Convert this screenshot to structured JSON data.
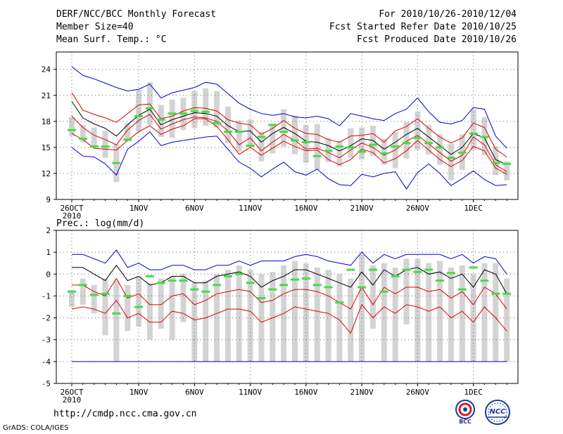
{
  "header": {
    "title": "DERF/NCC/BCC Monthly Forecast",
    "member_size": "Member Size=40",
    "variable": "Mean Surf. Temp.: °C",
    "period": "For 2010/10/26-2010/12/04",
    "fcst_started": "Fcst Started Refer Date 2010/10/25",
    "fcst_produced": "Fcst Produced Date 2010/10/26"
  },
  "footer": {
    "url": "http://cmdp.ncc.cma.gov.cn",
    "grads": "GrADS: COLA/IGES",
    "logo_bcc": "BCC",
    "logo_ncc": "NCC"
  },
  "colors": {
    "envelope": "#0000cc",
    "spread": "#dd0000",
    "mean": "#000000",
    "obs": "#44dd44",
    "box": "#d3d3d3"
  },
  "chart_data": [
    {
      "type": "line",
      "name": "temperature",
      "title": "",
      "ylabel": "",
      "ylim": [
        9,
        26
      ],
      "yticks": [
        9,
        12,
        15,
        18,
        21,
        24
      ],
      "xlim": [
        1,
        40
      ],
      "xticks": [
        {
          "x": 1,
          "label": "26OCT",
          "sub": "2010"
        },
        {
          "x": 7,
          "label": "1NOV"
        },
        {
          "x": 12,
          "label": "6NOV"
        },
        {
          "x": 17,
          "label": "11NOV"
        },
        {
          "x": 22,
          "label": "16NOV"
        },
        {
          "x": 27,
          "label": "21NOV"
        },
        {
          "x": 32,
          "label": "26NOV"
        },
        {
          "x": 37,
          "label": "1DEC"
        }
      ],
      "series": [
        {
          "name": "max",
          "color": "#0000cc",
          "values": [
            24.3,
            23.3,
            22.9,
            22.4,
            21.9,
            21.5,
            21.7,
            22.3,
            20.7,
            21.3,
            21.6,
            21.9,
            22.5,
            22.3,
            21.2,
            20.1,
            19.4,
            18.9,
            18.7,
            18.9,
            18.5,
            18.4,
            18.6,
            18.3,
            17.5,
            18.9,
            18.6,
            18.3,
            18.1,
            18.9,
            19.4,
            20.7,
            19.1,
            17.9,
            17.7,
            18.1,
            19.6,
            19.4,
            16.3,
            14.9
          ]
        },
        {
          "name": "upper",
          "color": "#dd0000",
          "values": [
            21.3,
            19.3,
            18.8,
            18.4,
            17.9,
            18.9,
            19.9,
            20.0,
            18.3,
            18.6,
            19.2,
            19.6,
            19.5,
            19.2,
            18.2,
            17.8,
            17.6,
            16.5,
            17.2,
            18.1,
            17.2,
            16.6,
            16.5,
            15.9,
            15.6,
            16.3,
            16.4,
            16.6,
            15.6,
            16.9,
            17.4,
            18.3,
            17.2,
            16.2,
            15.5,
            16.1,
            17.8,
            17.3,
            14.8,
            13.9
          ]
        },
        {
          "name": "mean",
          "color": "#000000",
          "values": [
            20.3,
            18.4,
            17.7,
            17.2,
            16.3,
            17.6,
            18.7,
            19.4,
            17.6,
            18.2,
            18.6,
            19.0,
            18.9,
            18.6,
            17.5,
            16.8,
            16.9,
            15.6,
            16.6,
            17.3,
            16.6,
            15.7,
            15.6,
            15.2,
            14.6,
            15.2,
            16.0,
            15.8,
            14.8,
            15.6,
            16.5,
            17.2,
            16.2,
            15.2,
            14.2,
            15.0,
            16.6,
            16.1,
            13.6,
            13.0
          ]
        },
        {
          "name": "lower",
          "color": "#dd0000",
          "values": [
            18.6,
            17.3,
            16.4,
            15.9,
            15.3,
            17.0,
            18.1,
            18.8,
            17.1,
            17.7,
            18.2,
            18.5,
            18.4,
            18.0,
            16.9,
            15.3,
            16.1,
            14.6,
            15.6,
            16.5,
            15.8,
            14.8,
            14.9,
            14.4,
            13.8,
            14.7,
            15.5,
            15.0,
            14.1,
            14.7,
            15.7,
            16.4,
            15.4,
            14.4,
            13.4,
            14.1,
            16.2,
            15.3,
            13.0,
            12.2
          ]
        },
        {
          "name": "lower2",
          "color": "#dd0000",
          "values": [
            16.6,
            15.9,
            14.9,
            14.8,
            14.7,
            15.8,
            16.8,
            17.5,
            16.5,
            17.1,
            17.5,
            18.3,
            18.3,
            17.4,
            15.9,
            14.2,
            15.0,
            14.1,
            14.9,
            15.7,
            15.1,
            14.6,
            14.7,
            13.6,
            13.0,
            13.6,
            14.8,
            14.4,
            13.2,
            13.7,
            14.6,
            15.8,
            14.7,
            13.6,
            12.8,
            13.5,
            15.1,
            14.6,
            12.6,
            11.9
          ]
        },
        {
          "name": "min",
          "color": "#0000cc",
          "values": [
            15.0,
            14.0,
            13.9,
            13.1,
            11.8,
            14.8,
            15.7,
            16.8,
            15.2,
            15.6,
            15.8,
            16.0,
            16.2,
            16.3,
            14.8,
            13.3,
            12.6,
            11.6,
            12.5,
            13.3,
            12.2,
            11.8,
            12.5,
            11.4,
            10.7,
            10.6,
            11.9,
            11.6,
            12.0,
            12.2,
            10.2,
            12.1,
            13.1,
            12.0,
            10.6,
            11.4,
            12.3,
            11.3,
            10.6,
            10.7
          ]
        }
      ],
      "boxes": {
        "low": [
          16.3,
          15.6,
          15.1,
          13.8,
          11.0,
          15.7,
          16.8,
          17.6,
          16.2,
          16.1,
          17.0,
          17.2,
          17.5,
          17.3,
          15.5,
          14.5,
          15.0,
          13.4,
          14.3,
          15.1,
          14.2,
          13.2,
          12.4,
          13.3,
          12.8,
          13.8,
          13.6,
          14.0,
          13.0,
          12.6,
          13.7,
          14.7,
          14.2,
          13.0,
          11.2,
          12.4,
          14.7,
          14.1,
          11.8,
          11.2
        ],
        "high": [
          18.5,
          17.6,
          17.3,
          16.9,
          15.4,
          17.8,
          21.6,
          22.5,
          19.9,
          20.5,
          20.7,
          21.5,
          21.8,
          21.5,
          19.7,
          18.1,
          18.2,
          16.8,
          17.7,
          19.4,
          18.7,
          17.6,
          17.7,
          16.1,
          15.7,
          17.2,
          17.3,
          17.5,
          16.0,
          16.8,
          17.9,
          19.1,
          17.6,
          16.5,
          15.4,
          16.5,
          19.4,
          18.5,
          15.1,
          13.4
        ]
      },
      "obs": [
        17.0,
        16.0,
        15.1,
        15.1,
        13.2,
        15.9,
        18.6,
        19.5,
        18.2,
        18.9,
        18.9,
        19.2,
        19.1,
        17.8,
        16.8,
        16.8,
        15.2,
        16.2,
        17.6,
        16.8,
        15.8,
        15.6,
        14.0,
        14.6,
        15.1,
        15.0,
        14.5,
        15.3,
        14.3,
        15.1,
        15.5,
        16.1,
        15.5,
        15.0,
        13.8,
        14.4,
        16.6,
        16.2,
        13.2,
        13.1
      ]
    },
    {
      "type": "line",
      "name": "precipitation",
      "title": "Prec.: log(mm/d)",
      "ylabel": "",
      "ylim": [
        -5,
        2
      ],
      "yticks": [
        -5,
        -4,
        -3,
        -2,
        -1,
        0,
        1,
        2
      ],
      "xlim": [
        1,
        40
      ],
      "xticks": [
        {
          "x": 1,
          "label": "26OCT",
          "sub": "2010"
        },
        {
          "x": 7,
          "label": "1NOV"
        },
        {
          "x": 12,
          "label": "6NOV"
        },
        {
          "x": 17,
          "label": "11NOV"
        },
        {
          "x": 22,
          "label": "16NOV"
        },
        {
          "x": 27,
          "label": "21NOV"
        },
        {
          "x": 32,
          "label": "26NOV"
        },
        {
          "x": 37,
          "label": "1DEC"
        }
      ],
      "series": [
        {
          "name": "max",
          "color": "#0000cc",
          "values": [
            0.9,
            0.9,
            0.7,
            0.5,
            1.1,
            0.3,
            0.5,
            0.2,
            0.2,
            0.4,
            0.4,
            0.2,
            0.2,
            0.4,
            0.4,
            0.6,
            0.4,
            0.6,
            0.6,
            0.6,
            0.8,
            0.9,
            0.8,
            0.6,
            0.5,
            0.4,
            1.0,
            0.5,
            0.9,
            0.7,
            0.9,
            0.9,
            0.9,
            0.9,
            0.7,
            0.9,
            0.5,
            0.8,
            0.7,
            0.0
          ]
        },
        {
          "name": "upper",
          "color": "#000000",
          "values": [
            0.3,
            0.3,
            0.0,
            -0.3,
            0.4,
            -0.3,
            -0.1,
            -0.5,
            -0.4,
            -0.1,
            -0.1,
            -0.4,
            -0.4,
            -0.1,
            0.0,
            0.1,
            -0.1,
            -0.6,
            -0.3,
            -0.1,
            0.2,
            0.2,
            0.0,
            -0.2,
            -0.4,
            -0.6,
            0.1,
            -0.5,
            0.2,
            -0.1,
            0.2,
            0.3,
            0.0,
            0.1,
            -0.2,
            0.0,
            -0.6,
            0.2,
            0.0,
            -0.9
          ]
        },
        {
          "name": "mid",
          "color": "#dd0000",
          "values": [
            -0.5,
            -0.5,
            -0.8,
            -1.0,
            -0.2,
            -1.1,
            -0.9,
            -1.4,
            -1.4,
            -1.0,
            -0.9,
            -1.4,
            -1.2,
            -0.9,
            -0.8,
            -0.7,
            -0.8,
            -1.3,
            -1.2,
            -0.9,
            -0.7,
            -0.7,
            -0.8,
            -1.0,
            -1.3,
            -1.6,
            -0.6,
            -1.4,
            -0.6,
            -0.9,
            -0.6,
            -0.6,
            -0.8,
            -0.7,
            -1.1,
            -0.8,
            -1.4,
            -0.6,
            -0.9,
            -1.6
          ]
        },
        {
          "name": "lower",
          "color": "#dd0000",
          "values": [
            -1.6,
            -1.5,
            -1.6,
            -1.8,
            -1.2,
            -2.0,
            -1.8,
            -2.2,
            -2.2,
            -1.7,
            -1.8,
            -2.1,
            -2.0,
            -1.8,
            -1.6,
            -1.6,
            -1.7,
            -2.2,
            -2.0,
            -1.8,
            -1.5,
            -1.6,
            -1.7,
            -1.8,
            -2.1,
            -2.7,
            -1.4,
            -2.0,
            -1.5,
            -1.8,
            -1.4,
            -1.5,
            -1.7,
            -1.5,
            -2.0,
            -1.7,
            -2.2,
            -1.5,
            -2.0,
            -2.6
          ]
        },
        {
          "name": "min",
          "color": "#0000cc",
          "values": [
            -4.0,
            -4.0,
            -4.0,
            -4.0,
            -4.0,
            -4.0,
            -4.0,
            -4.0,
            -4.0,
            -4.0,
            -4.0,
            -4.0,
            -4.0,
            -4.0,
            -4.0,
            -4.0,
            -4.0,
            -4.0,
            -4.0,
            -4.0,
            -4.0,
            -4.0,
            -4.0,
            -4.0,
            -4.0,
            -4.0,
            -4.0,
            -4.0,
            -4.0,
            -4.0,
            -4.0,
            -4.0,
            -4.0,
            -4.0,
            -4.0,
            -4.0,
            -4.0,
            -4.0,
            -4.0,
            -4.0
          ]
        }
      ],
      "boxes": {
        "low": [
          -1.5,
          -1.4,
          -1.8,
          -2.8,
          -4.0,
          -2.6,
          -2.4,
          -3.0,
          -2.5,
          -3.0,
          -2.2,
          -4.0,
          -4.0,
          -4.0,
          -4.0,
          -4.0,
          -4.0,
          -4.0,
          -4.0,
          -4.0,
          -4.0,
          -4.0,
          -4.0,
          -4.0,
          -4.0,
          -4.0,
          -4.0,
          -2.5,
          -4.0,
          -4.0,
          -2.3,
          -4.0,
          -4.0,
          -4.0,
          -4.0,
          -4.0,
          -4.0,
          -4.0,
          -4.0,
          -4.0
        ],
        "high": [
          -0.8,
          -0.2,
          -0.5,
          -0.2,
          -0.3,
          -0.5,
          -0.1,
          -0.4,
          -0.2,
          -0.1,
          0.0,
          -0.4,
          -0.3,
          0.0,
          0.2,
          0.4,
          0.2,
          0.0,
          0.1,
          0.4,
          0.6,
          0.5,
          0.3,
          0.2,
          0.0,
          -0.2,
          0.9,
          0.4,
          0.5,
          0.3,
          0.7,
          0.7,
          0.5,
          0.6,
          0.3,
          0.4,
          0.0,
          0.5,
          0.5,
          -0.2
        ]
      },
      "obs": [
        -0.8,
        -0.5,
        -0.95,
        -0.9,
        -1.8,
        -1.0,
        -1.5,
        -0.1,
        -0.4,
        -0.3,
        -0.3,
        -0.7,
        -0.8,
        -0.5,
        -0.1,
        0.0,
        -0.4,
        -1.1,
        -0.7,
        -0.5,
        -0.25,
        -0.2,
        -0.5,
        -0.6,
        -1.3,
        0.2,
        -0.6,
        0.2,
        -0.8,
        -0.1,
        0.2,
        0.1,
        0.2,
        -0.3,
        0.05,
        -0.7,
        0.3,
        -0.3,
        -0.9,
        -0.9
      ]
    }
  ]
}
